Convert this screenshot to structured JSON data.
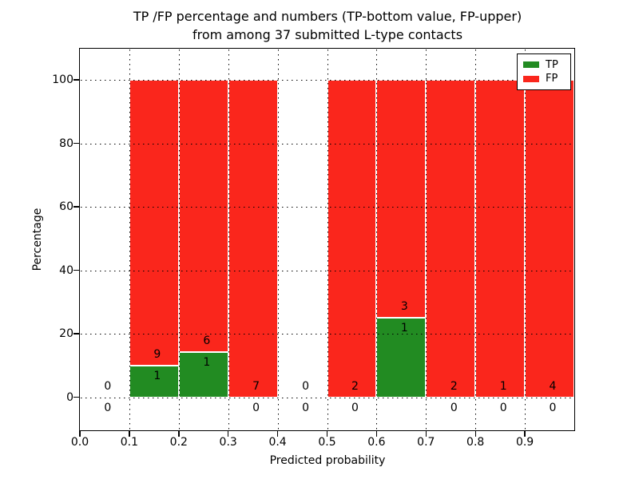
{
  "chart_data": {
    "type": "bar",
    "title_line1": "TP /FP percentage and numbers (TP-bottom value, FP-upper)",
    "title_line2": "from among 37 submitted L-type contacts",
    "xlabel": "Predicted probability",
    "ylabel": "Percentage",
    "total_submitted": 37,
    "xlim": [
      0.0,
      1.0
    ],
    "ylim": [
      -10.4,
      109.8
    ],
    "x_ticks": [
      "0.0",
      "0.1",
      "0.2",
      "0.3",
      "0.4",
      "0.5",
      "0.6",
      "0.7",
      "0.8",
      "0.9"
    ],
    "y_ticks": [
      "0",
      "20",
      "40",
      "60",
      "80",
      "100"
    ],
    "grid": "dotted",
    "stack_total_pct": 100,
    "legend": {
      "position": "upper-right",
      "items": [
        {
          "label": "TP",
          "color": "#228b22"
        },
        {
          "label": "FP",
          "color": "#fa261c"
        }
      ]
    },
    "colors": {
      "tp": "#228b22",
      "fp": "#fa261c",
      "grid": "#000000",
      "text": "#000000",
      "background": "#ffffff"
    },
    "bins": [
      {
        "bin_start": 0.0,
        "bin_end": 0.1,
        "tp": 0,
        "fp": 0,
        "tp_pct": 0,
        "bar": false
      },
      {
        "bin_start": 0.1,
        "bin_end": 0.2,
        "tp": 1,
        "fp": 9,
        "tp_pct": 10.0,
        "bar": true
      },
      {
        "bin_start": 0.2,
        "bin_end": 0.3,
        "tp": 1,
        "fp": 6,
        "tp_pct": 14.29,
        "bar": true
      },
      {
        "bin_start": 0.3,
        "bin_end": 0.4,
        "tp": 0,
        "fp": 7,
        "tp_pct": 0,
        "bar": true
      },
      {
        "bin_start": 0.4,
        "bin_end": 0.5,
        "tp": 0,
        "fp": 0,
        "tp_pct": 0,
        "bar": false
      },
      {
        "bin_start": 0.5,
        "bin_end": 0.6,
        "tp": 0,
        "fp": 2,
        "tp_pct": 0,
        "bar": true
      },
      {
        "bin_start": 0.6,
        "bin_end": 0.7,
        "tp": 1,
        "fp": 3,
        "tp_pct": 25.0,
        "bar": true
      },
      {
        "bin_start": 0.7,
        "bin_end": 0.8,
        "tp": 0,
        "fp": 2,
        "tp_pct": 0,
        "bar": true
      },
      {
        "bin_start": 0.8,
        "bin_end": 0.9,
        "tp": 0,
        "fp": 1,
        "tp_pct": 0,
        "bar": true
      },
      {
        "bin_start": 0.9,
        "bin_end": 1.0,
        "tp": 0,
        "fp": 4,
        "tp_pct": 0,
        "bar": true
      }
    ]
  }
}
